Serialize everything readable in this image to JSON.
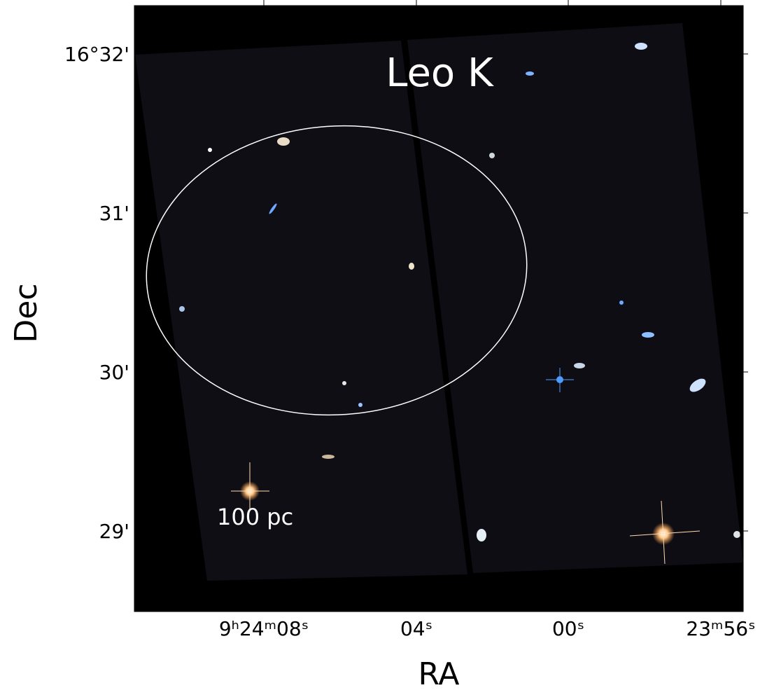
{
  "title": "Leo K",
  "x_axis": {
    "label": "RA",
    "ticks": [
      "9ʰ24ᵐ08ˢ",
      "04ˢ",
      "00ˢ",
      "23ᵐ56ˢ"
    ]
  },
  "y_axis": {
    "label": "Dec",
    "ticks": [
      "16°32'",
      "31'",
      "30'",
      "29'"
    ]
  },
  "scale_bar": {
    "label": "100 pc"
  }
}
